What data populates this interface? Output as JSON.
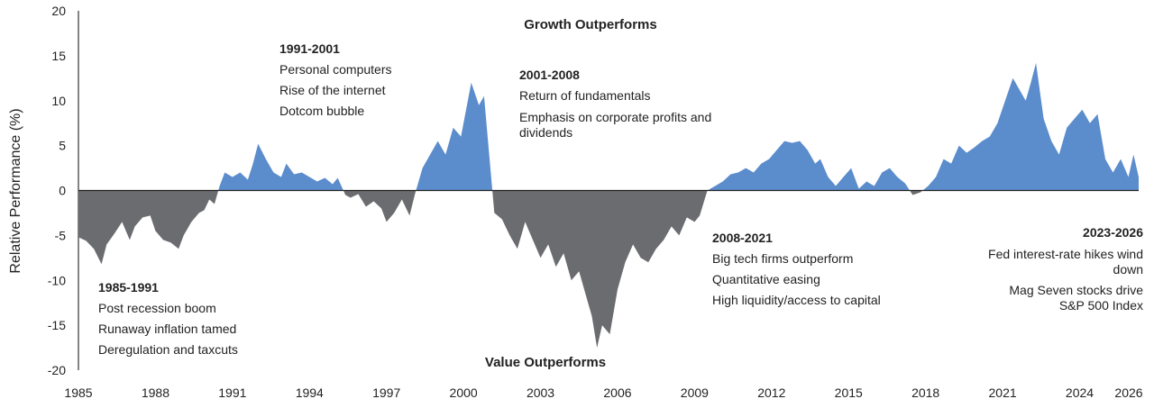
{
  "chart_data": {
    "type": "area",
    "ylabel": "Relative Performance (%)",
    "ylim": [
      -20,
      20
    ],
    "yticks": [
      20,
      15,
      10,
      5,
      0,
      -5,
      -10,
      -15,
      -20
    ],
    "xlim": [
      1985,
      2026.3
    ],
    "xticks": [
      "1985",
      "1988",
      "1991",
      "1994",
      "1997",
      "2000",
      "2003",
      "2006",
      "2009",
      "2012",
      "2015",
      "2018",
      "2021",
      "2024",
      "2026"
    ],
    "band_labels": {
      "top": "Growth Outperforms",
      "bottom": "Value Outperforms"
    },
    "colors": {
      "positive": "#5b8ccc",
      "negative": "#6b6c70",
      "axis": "#333333"
    },
    "series": {
      "x": [
        1985.0,
        1985.3,
        1985.6,
        1985.9,
        1986.1,
        1986.4,
        1986.7,
        1987.0,
        1987.2,
        1987.5,
        1987.8,
        1988.0,
        1988.3,
        1988.6,
        1988.9,
        1989.1,
        1989.4,
        1989.7,
        1989.9,
        1990.1,
        1990.3,
        1990.5,
        1990.7,
        1991.0,
        1991.3,
        1991.6,
        1991.8,
        1992.0,
        1992.3,
        1992.6,
        1992.9,
        1993.1,
        1993.4,
        1993.7,
        1994.0,
        1994.3,
        1994.6,
        1994.9,
        1995.1,
        1995.4,
        1995.6,
        1995.9,
        1996.2,
        1996.5,
        1996.8,
        1997.0,
        1997.3,
        1997.6,
        1997.9,
        1998.1,
        1998.4,
        1998.7,
        1999.0,
        1999.3,
        1999.6,
        1999.9,
        2000.1,
        2000.3,
        2000.6,
        2000.8,
        2001.0,
        2001.2,
        2001.5,
        2001.8,
        2002.1,
        2002.4,
        2002.7,
        2003.0,
        2003.3,
        2003.6,
        2003.9,
        2004.2,
        2004.5,
        2004.8,
        2005.0,
        2005.2,
        2005.4,
        2005.7,
        2006.0,
        2006.3,
        2006.6,
        2006.9,
        2007.2,
        2007.5,
        2007.8,
        2008.1,
        2008.4,
        2008.7,
        2009.0,
        2009.2,
        2009.5,
        2009.8,
        2010.1,
        2010.4,
        2010.7,
        2011.0,
        2011.3,
        2011.6,
        2011.9,
        2012.2,
        2012.5,
        2012.8,
        2013.1,
        2013.4,
        2013.7,
        2013.9,
        2014.2,
        2014.5,
        2014.8,
        2015.1,
        2015.4,
        2015.7,
        2016.0,
        2016.3,
        2016.6,
        2016.9,
        2017.2,
        2017.5,
        2017.8,
        2018.1,
        2018.4,
        2018.7,
        2019.0,
        2019.3,
        2019.6,
        2019.9,
        2020.2,
        2020.5,
        2020.8,
        2021.1,
        2021.4,
        2021.7,
        2021.9,
        2022.1,
        2022.3,
        2022.6,
        2022.9,
        2023.2,
        2023.5,
        2023.8,
        2024.1,
        2024.4,
        2024.7,
        2025.0,
        2025.3,
        2025.6,
        2025.9,
        2026.1,
        2026.3
      ],
      "y": [
        -5.2,
        -5.6,
        -6.5,
        -8.2,
        -6.0,
        -4.8,
        -3.5,
        -5.5,
        -4.0,
        -3.0,
        -2.8,
        -4.5,
        -5.5,
        -5.8,
        -6.5,
        -5.0,
        -3.5,
        -2.5,
        -2.2,
        -1.0,
        -1.5,
        0.5,
        2.0,
        1.5,
        2.0,
        1.2,
        3.0,
        5.2,
        3.5,
        2.0,
        1.5,
        3.0,
        1.8,
        2.0,
        1.5,
        1.0,
        1.4,
        0.7,
        1.4,
        -0.5,
        -0.8,
        -0.4,
        -1.8,
        -1.2,
        -2.0,
        -3.5,
        -2.5,
        -1.0,
        -2.8,
        -0.5,
        2.5,
        4.0,
        5.5,
        4.0,
        7.0,
        6.0,
        9.0,
        12.0,
        9.5,
        10.5,
        4.0,
        -2.5,
        -3.2,
        -5.0,
        -6.5,
        -3.5,
        -5.5,
        -7.5,
        -6.0,
        -8.5,
        -7.0,
        -10.0,
        -9.0,
        -12.0,
        -14.0,
        -17.5,
        -15.0,
        -16.0,
        -11.0,
        -8.0,
        -6.0,
        -7.5,
        -8.0,
        -6.5,
        -5.5,
        -4.0,
        -5.0,
        -3.0,
        -3.5,
        -2.8,
        0.0,
        0.5,
        1.0,
        1.8,
        2.0,
        2.5,
        2.0,
        3.0,
        3.5,
        4.5,
        5.5,
        5.3,
        5.5,
        4.5,
        3.0,
        3.5,
        1.5,
        0.5,
        1.5,
        2.5,
        0.2,
        1.0,
        0.5,
        2.0,
        2.5,
        1.5,
        0.8,
        -0.5,
        -0.2,
        0.5,
        1.5,
        3.5,
        3.0,
        5.0,
        4.2,
        4.8,
        5.5,
        6.0,
        7.5,
        10.0,
        12.5,
        11.0,
        10.0,
        12.0,
        14.2,
        8.0,
        5.5,
        4.0,
        7.0,
        8.0,
        9.0,
        7.5,
        8.5,
        3.5,
        2.0,
        3.5,
        1.5,
        4.0,
        1.5
      ]
    }
  },
  "annotations": [
    {
      "title": "1985-1991",
      "lines": [
        "Post recession boom",
        "Runaway inflation tamed",
        "Deregulation and taxcuts"
      ]
    },
    {
      "title": "1991-2001",
      "lines": [
        "Personal computers",
        "Rise of the internet",
        "Dotcom bubble"
      ]
    },
    {
      "title": "2001-2008",
      "lines": [
        "Return of fundamentals",
        "Emphasis on corporate profits and dividends"
      ]
    },
    {
      "title": "2008-2021",
      "lines": [
        "Big tech firms outperform",
        "Quantitative easing",
        "High liquidity/access to capital"
      ]
    },
    {
      "title": "2023-2026",
      "lines": [
        "Fed interest-rate hikes wind down",
        "Mag Seven stocks drive S&P 500 Index"
      ]
    }
  ]
}
